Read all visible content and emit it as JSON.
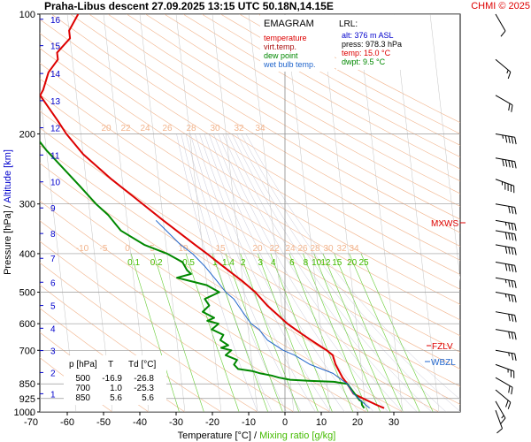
{
  "header": {
    "title": "Praha-Libus   descent   27.09.2025 13:15 UTC   50.18N,14.15E",
    "copyright": "CHMI © 2025"
  },
  "legend": {
    "title": "EMAGRAM",
    "items": [
      {
        "label": "temperature",
        "color": "#dd0000"
      },
      {
        "label": "virt.temp.",
        "color": "#aa1111"
      },
      {
        "label": "dew point",
        "color": "#008800"
      },
      {
        "label": "wet bulb temp.",
        "color": "#2266cc"
      }
    ]
  },
  "lrl": {
    "title": "LRL:",
    "alt": "alt: 376 m ASL",
    "press": "press: 978.3 hPa",
    "temp": "temp: 15.0 °C",
    "dwpt": "dwpt: 9.5 °C",
    "colors": {
      "alt": "#0000cc",
      "press": "#000000",
      "temp": "#dd0000",
      "dwpt": "#008800"
    }
  },
  "levels_table": {
    "headers": [
      "p [hPa]",
      "T",
      "Td [°C]"
    ],
    "rows": [
      [
        "500",
        "-16.9",
        "-26.8"
      ],
      [
        "700",
        "1.0",
        "-25.3"
      ],
      [
        "850",
        "5.6",
        "5.6"
      ]
    ]
  },
  "chart_data": {
    "type": "line",
    "title": "EMAGRAM",
    "xlabel": "Temperature [°C]",
    "xlabel_separator": " / ",
    "xlabel2": "Mixing ratio [g/kg]",
    "ylabel": "Pressure [hPa]",
    "ylabel_separator": " / ",
    "ylabel2": "Altitude [km]",
    "xlim": [
      -80,
      40
    ],
    "ylim": [
      1000,
      100
    ],
    "y_scale": "log",
    "x_ticks": [
      -70,
      -60,
      -50,
      -40,
      -30,
      -20,
      -10,
      0,
      10,
      20,
      30
    ],
    "pressure_ticks": [
      100,
      200,
      300,
      400,
      500,
      600,
      700,
      850,
      925,
      1000
    ],
    "altitude_ticks_km": [
      {
        "km": 1,
        "p": 900
      },
      {
        "km": 2,
        "p": 796
      },
      {
        "km": 3,
        "p": 701
      },
      {
        "km": 4,
        "p": 616
      },
      {
        "km": 5,
        "p": 540
      },
      {
        "km": 6,
        "p": 472
      },
      {
        "km": 7,
        "p": 411
      },
      {
        "km": 8,
        "p": 356
      },
      {
        "km": 9,
        "p": 307
      },
      {
        "km": 10,
        "p": 264
      },
      {
        "km": 11,
        "p": 226
      },
      {
        "km": 12,
        "p": 193
      },
      {
        "km": 13,
        "p": 165
      },
      {
        "km": 14,
        "p": 141
      },
      {
        "km": 15,
        "p": 120
      },
      {
        "km": 16,
        "p": 103
      }
    ],
    "mixing_ratio_labels": [
      "0.1",
      "0.2",
      "0.5",
      "1",
      "1.4",
      "2",
      "3",
      "4",
      "6",
      "8",
      "10",
      "12",
      "15",
      "20",
      "25"
    ],
    "mixing_ratio_values": [
      0.1,
      0.2,
      0.5,
      1,
      1.4,
      2,
      3,
      4,
      6,
      8,
      10,
      12,
      15,
      20,
      25
    ],
    "adiabat_labels_lower": [
      "-10",
      "-5",
      "0",
      "5",
      "10",
      "15",
      "20",
      "22",
      "24",
      "26",
      "28",
      "30",
      "32",
      "34"
    ],
    "adiabat_labels_upper": [
      "20",
      "22",
      "24",
      "26",
      "28",
      "30",
      "32",
      "34"
    ],
    "series": [
      {
        "name": "temperature",
        "color": "#dd0000",
        "points": [
          [
            15,
            978
          ],
          [
            13,
            960
          ],
          [
            11,
            940
          ],
          [
            9,
            920
          ],
          [
            7,
            900
          ],
          [
            5.6,
            850
          ],
          [
            4.5,
            820
          ],
          [
            3,
            760
          ],
          [
            2.5,
            720
          ],
          [
            1,
            700
          ],
          [
            -1,
            680
          ],
          [
            -3,
            660
          ],
          [
            -5,
            640
          ],
          [
            -7,
            620
          ],
          [
            -9,
            600
          ],
          [
            -11,
            575
          ],
          [
            -14,
            540
          ],
          [
            -16.9,
            500
          ],
          [
            -20,
            470
          ],
          [
            -25,
            430
          ],
          [
            -29,
            400
          ],
          [
            -32,
            380
          ],
          [
            -40,
            330
          ],
          [
            -47,
            290
          ],
          [
            -53,
            260
          ],
          [
            -60,
            225
          ],
          [
            -64,
            200
          ],
          [
            -66,
            185
          ],
          [
            -70,
            160
          ],
          [
            -69,
            155
          ],
          [
            -67,
            140
          ],
          [
            -64,
            130
          ],
          [
            -64,
            125
          ],
          [
            -60,
            115
          ],
          [
            -60,
            110
          ],
          [
            -57,
            100
          ]
        ]
      },
      {
        "name": "dew point",
        "color": "#008800",
        "points": [
          [
            9.5,
            978
          ],
          [
            9,
            960
          ],
          [
            9,
            940
          ],
          [
            8.5,
            935
          ],
          [
            5.6,
            850
          ],
          [
            2,
            840
          ],
          [
            -5,
            835
          ],
          [
            -10,
            830
          ],
          [
            -13,
            820
          ],
          [
            -15,
            810
          ],
          [
            -18,
            800
          ],
          [
            -20,
            790
          ],
          [
            -24,
            780
          ],
          [
            -25,
            760
          ],
          [
            -24,
            740
          ],
          [
            -27,
            720
          ],
          [
            -25.3,
            700
          ],
          [
            -28,
            690
          ],
          [
            -26,
            680
          ],
          [
            -28,
            660
          ],
          [
            -27,
            640
          ],
          [
            -30,
            620
          ],
          [
            -28,
            600
          ],
          [
            -31,
            590
          ],
          [
            -29,
            580
          ],
          [
            -32,
            560
          ],
          [
            -30,
            540
          ],
          [
            -31,
            520
          ],
          [
            -26.8,
            500
          ],
          [
            -30,
            480
          ],
          [
            -34,
            470
          ],
          [
            -38,
            460
          ],
          [
            -34,
            450
          ],
          [
            -35,
            440
          ],
          [
            -36,
            420
          ],
          [
            -40,
            400
          ],
          [
            -46,
            380
          ],
          [
            -52,
            350
          ],
          [
            -55,
            320
          ],
          [
            -58,
            300
          ],
          [
            -62,
            270
          ],
          [
            -65,
            250
          ],
          [
            -70,
            220
          ],
          [
            -73,
            200
          ],
          [
            -78,
            180
          ],
          [
            -80,
            170
          ]
        ]
      },
      {
        "name": "wet bulb temp.",
        "color": "#2266cc",
        "points": [
          [
            11,
            978
          ],
          [
            9,
            940
          ],
          [
            7,
            900
          ],
          [
            5.6,
            850
          ],
          [
            2,
            800
          ],
          [
            -4,
            760
          ],
          [
            -8,
            720
          ],
          [
            -11,
            700
          ],
          [
            -13,
            680
          ],
          [
            -15,
            660
          ],
          [
            -16,
            640
          ],
          [
            -17,
            620
          ],
          [
            -19,
            600
          ],
          [
            -20,
            580
          ],
          [
            -21,
            560
          ],
          [
            -22,
            540
          ],
          [
            -23,
            520
          ],
          [
            -25,
            500
          ],
          [
            -27,
            470
          ],
          [
            -30,
            430
          ],
          [
            -33,
            400
          ],
          [
            -36,
            380
          ],
          [
            -42,
            330
          ]
        ]
      }
    ],
    "annotations": [
      {
        "label": "MXWS",
        "p": 350,
        "color": "#dd0000"
      },
      {
        "label": "FZLV",
        "p": 695,
        "color": "#dd0000"
      },
      {
        "label": "WBZL",
        "p": 757,
        "color": "#2266cc"
      }
    ],
    "wind_barbs": [
      {
        "p": 100,
        "dir": 330,
        "speed": 10
      },
      {
        "p": 130,
        "dir": 310,
        "speed": 15
      },
      {
        "p": 160,
        "dir": 300,
        "speed": 20
      },
      {
        "p": 200,
        "dir": 280,
        "speed": 45
      },
      {
        "p": 230,
        "dir": 280,
        "speed": 50
      },
      {
        "p": 260,
        "dir": 290,
        "speed": 45
      },
      {
        "p": 300,
        "dir": 280,
        "speed": 30
      },
      {
        "p": 330,
        "dir": 280,
        "speed": 35
      },
      {
        "p": 350,
        "dir": 280,
        "speed": 40
      },
      {
        "p": 380,
        "dir": 280,
        "speed": 40
      },
      {
        "p": 420,
        "dir": 280,
        "speed": 40
      },
      {
        "p": 460,
        "dir": 280,
        "speed": 35
      },
      {
        "p": 500,
        "dir": 280,
        "speed": 35
      },
      {
        "p": 560,
        "dir": 280,
        "speed": 30
      },
      {
        "p": 620,
        "dir": 280,
        "speed": 30
      },
      {
        "p": 700,
        "dir": 280,
        "speed": 25
      },
      {
        "p": 760,
        "dir": 290,
        "speed": 25
      },
      {
        "p": 820,
        "dir": 300,
        "speed": 20
      },
      {
        "p": 880,
        "dir": 310,
        "speed": 20
      },
      {
        "p": 940,
        "dir": 330,
        "speed": 15
      },
      {
        "p": 990,
        "dir": 340,
        "speed": 10
      }
    ]
  }
}
